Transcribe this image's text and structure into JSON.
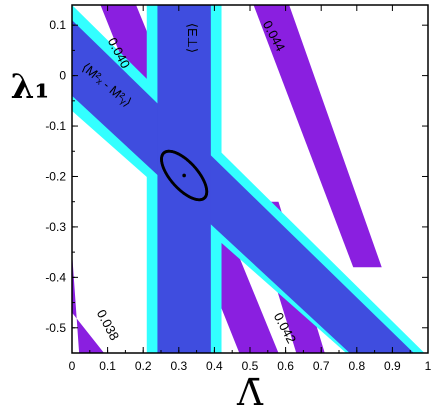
{
  "chart_data": {
    "type": "area",
    "xlabel": "Λ̄",
    "ylabel": "λ₁",
    "xlim": [
      0,
      1
    ],
    "ylim": [
      -0.55,
      0.14
    ],
    "xticks": [
      "0",
      "0.1",
      "0.2",
      "0.3",
      "0.4",
      "0.5",
      "0.6",
      "0.7",
      "0.8",
      "0.9",
      "1"
    ],
    "yticks": [
      "0.1",
      "0",
      "-0.1",
      "-0.2",
      "-0.3",
      "-0.4",
      "-0.5"
    ],
    "grid": false,
    "colors": {
      "purple": "#8a1fe0",
      "cyan": "#33ffff",
      "blue": "#3f4ddf",
      "ellipse": "#000000"
    },
    "purple_bands": [
      {
        "label": "0.038",
        "polygon": [
          [
            0,
            -0.35
          ],
          [
            0,
            -0.47
          ],
          [
            0.09,
            -0.55
          ],
          [
            0.02,
            -0.55
          ]
        ]
      },
      {
        "label": "0.040",
        "polygon": [
          [
            0.08,
            0.14
          ],
          [
            0.18,
            0.14
          ],
          [
            0.58,
            -0.55
          ],
          [
            0.47,
            -0.55
          ]
        ]
      },
      {
        "label": "0.042",
        "polygon": [
          [
            0.5,
            -0.25
          ],
          [
            0.58,
            -0.25
          ],
          [
            0.71,
            -0.55
          ],
          [
            0.63,
            -0.55
          ]
        ]
      },
      {
        "label": "0.044",
        "polygon": [
          [
            0.51,
            0.14
          ],
          [
            0.61,
            0.14
          ],
          [
            0.87,
            -0.38
          ],
          [
            0.79,
            -0.38
          ]
        ]
      }
    ],
    "vertical_band": {
      "label": "⟨E⊥⟩",
      "cyan_x": [
        0.21,
        0.42
      ],
      "blue_x": [
        0.24,
        0.39
      ],
      "y": [
        -0.55,
        0.14
      ]
    },
    "diagonal_band": {
      "label": "⟨M²ₓ - M²ᵧ⟩",
      "cyan_polygon": [
        [
          0,
          0.05
        ],
        [
          0,
          -0.01
        ],
        [
          0.87,
          -0.55
        ],
        [
          0.95,
          -0.55
        ]
      ],
      "blue_polygon": [
        [
          0,
          0.025
        ],
        [
          0,
          0.0
        ],
        [
          0.86,
          -0.55
        ],
        [
          0.91,
          -0.55
        ]
      ],
      "inner_blue_polygon": [
        [
          0,
          0.14
        ],
        [
          0,
          -0.07
        ],
        [
          0.77,
          -0.55
        ],
        [
          0.99,
          -0.55
        ]
      ]
    },
    "ellipse": {
      "center": [
        0.315,
        -0.198
      ],
      "semi_axis_major": 0.142,
      "semi_axis_minor": 0.042,
      "angle_deg": -48,
      "central_point": [
        0.315,
        -0.198
      ]
    }
  }
}
